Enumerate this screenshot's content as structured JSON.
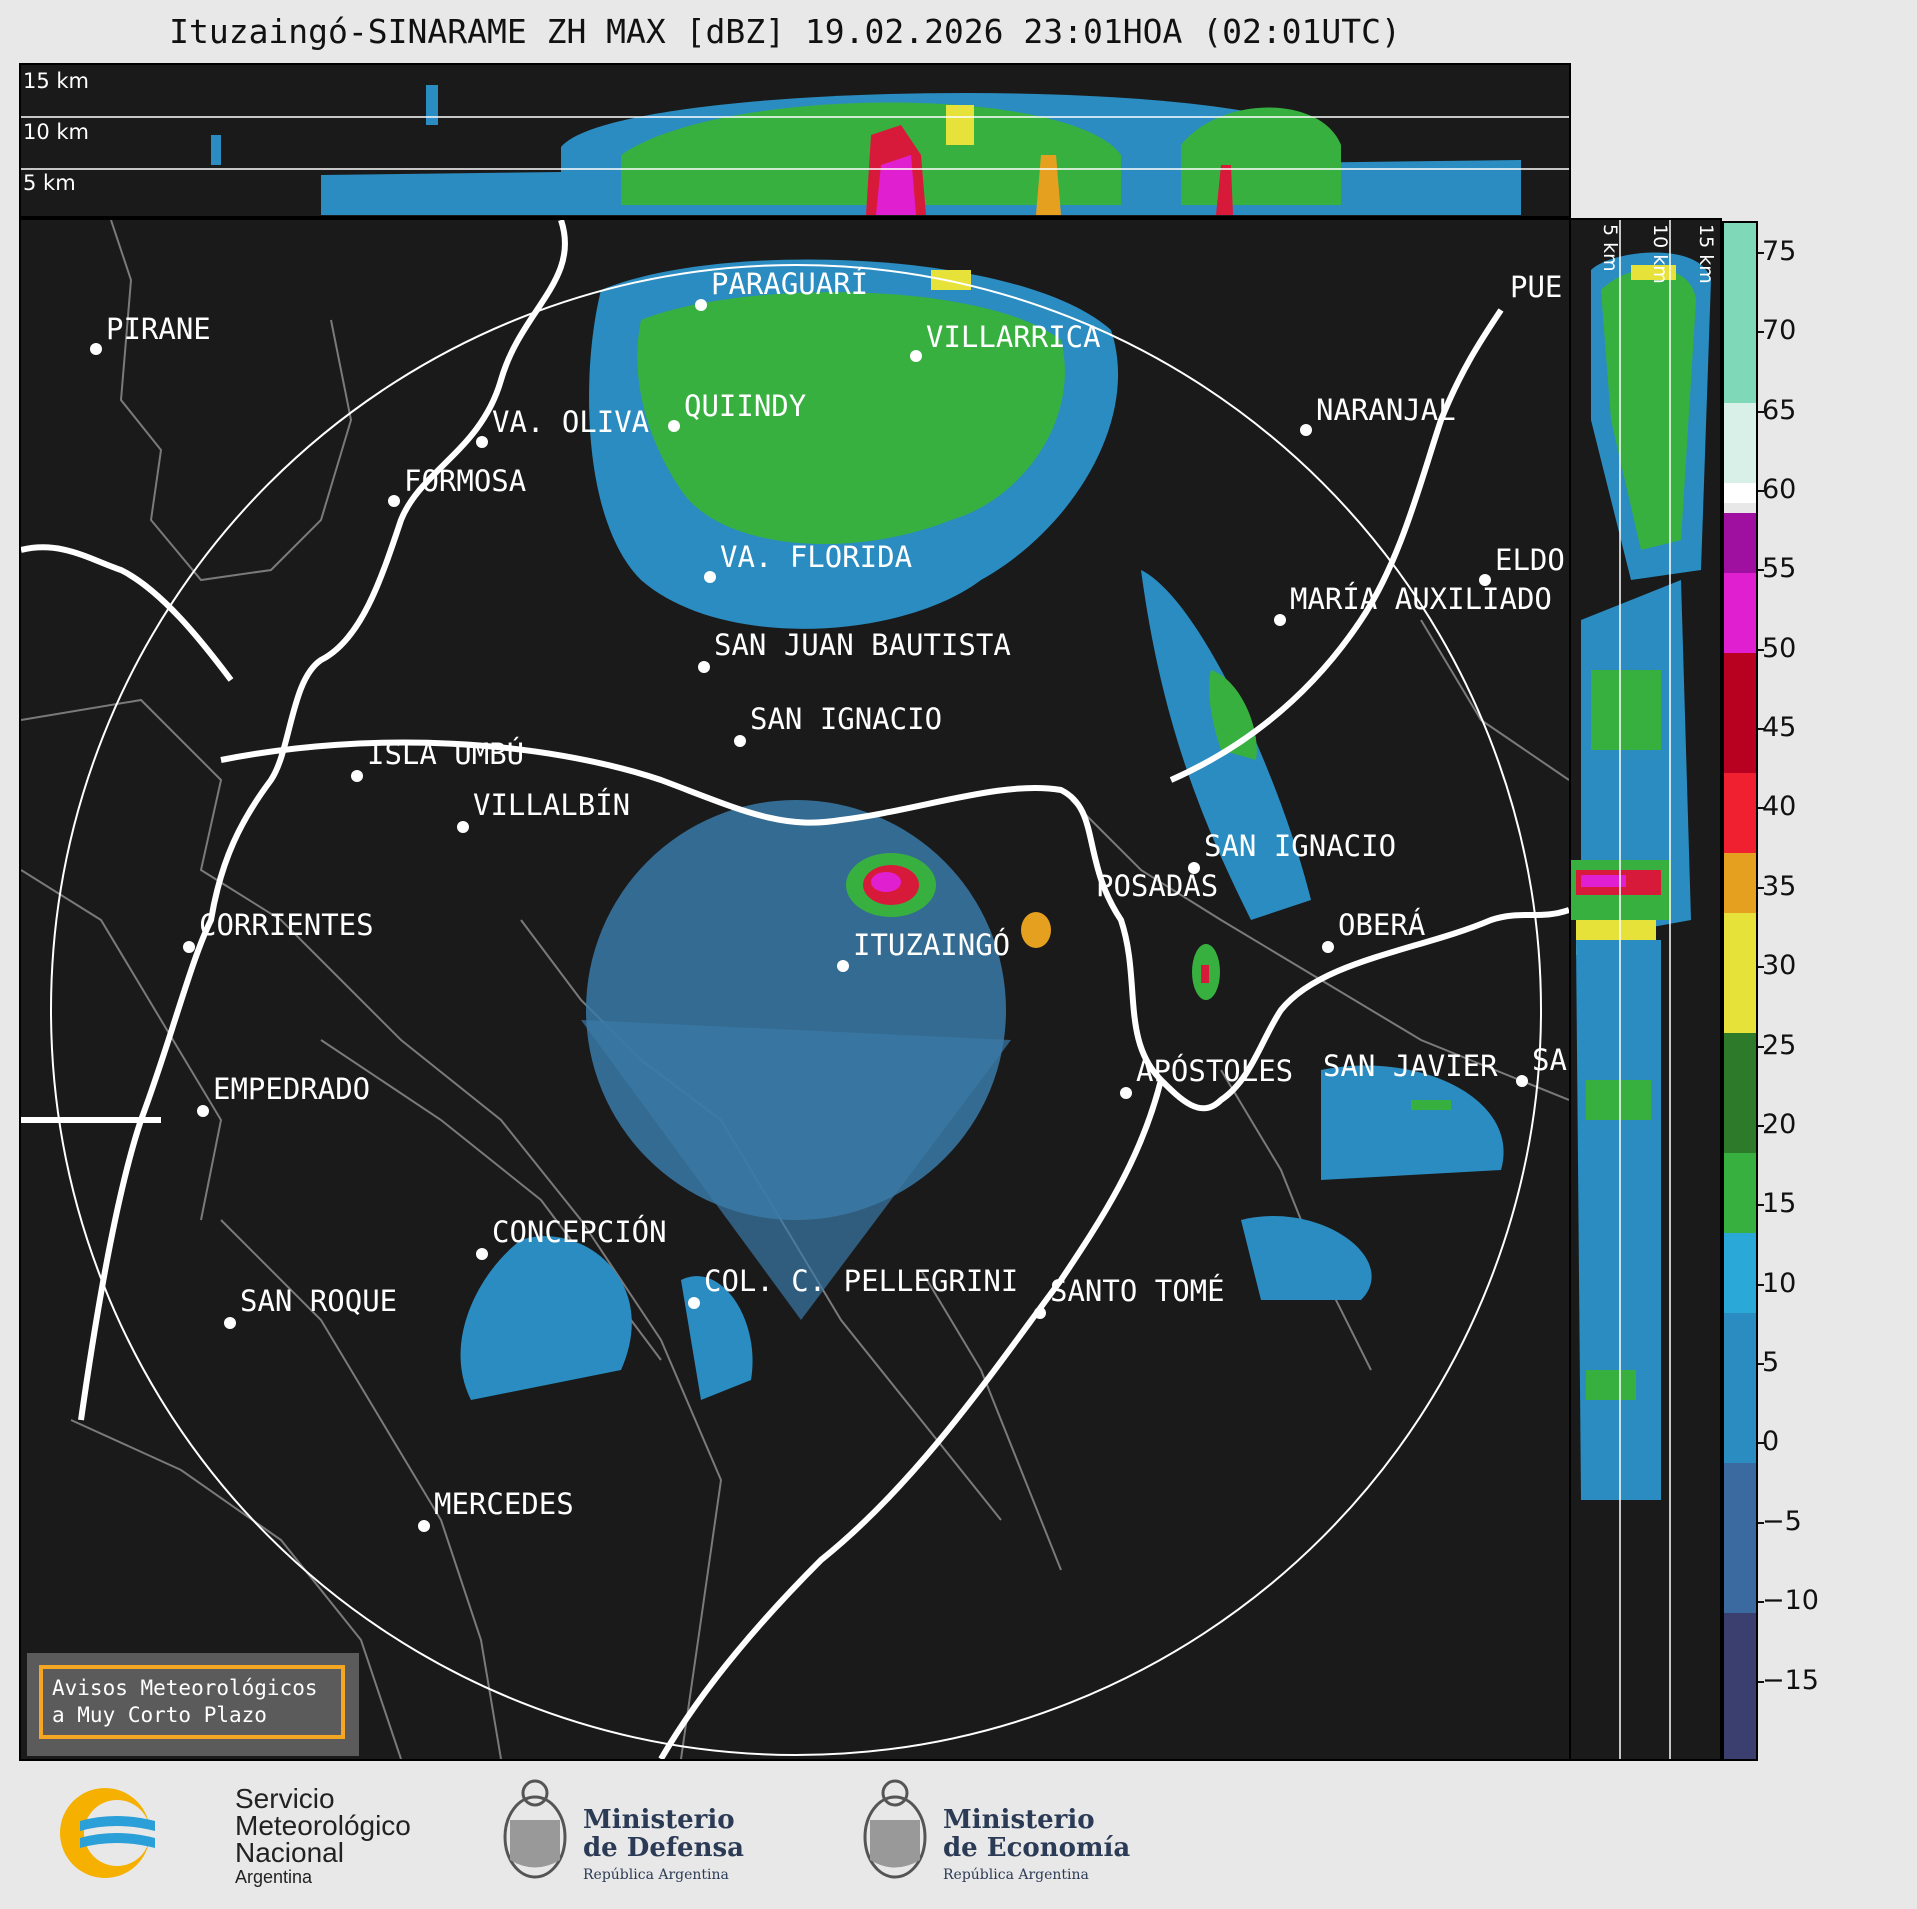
{
  "title": "Ituzaingó-SINARAME ZH MAX [dBZ] 19.02.2026 23:01HOA (02:01UTC)",
  "top_panel": {
    "height_labels": [
      "15 km",
      "10 km",
      "5 km"
    ]
  },
  "side_panel": {
    "height_labels": [
      "5 km",
      "10 km",
      "15 km"
    ]
  },
  "colorbar": {
    "ticks": [
      "75",
      "70",
      "65",
      "60",
      "55",
      "50",
      "45",
      "40",
      "35",
      "30",
      "25",
      "20",
      "15",
      "10",
      "5",
      "0",
      "−5",
      "−10",
      "−15"
    ],
    "tick_values": [
      75,
      70,
      65,
      60,
      55,
      50,
      45,
      40,
      35,
      30,
      25,
      20,
      15,
      10,
      5,
      0,
      -5,
      -10,
      -15
    ],
    "range": [
      -20,
      77
    ]
  },
  "cities": [
    {
      "name": "PARAGUARÍ"
    },
    {
      "name": "PIRANE"
    },
    {
      "name": "VILLARRICA"
    },
    {
      "name": "QUIINDY"
    },
    {
      "name": "VA. OLIVA"
    },
    {
      "name": "NARANJAL"
    },
    {
      "name": "FORMOSA"
    },
    {
      "name": "PUE"
    },
    {
      "name": "VA. FLORIDA"
    },
    {
      "name": "ELDO"
    },
    {
      "name": "MARÍA AUXILIADO"
    },
    {
      "name": "SAN JUAN BAUTISTA"
    },
    {
      "name": "SAN IGNACIO"
    },
    {
      "name": "ISLA UMBÚ"
    },
    {
      "name": "VILLALBÍN"
    },
    {
      "name": "SAN IGNACIO"
    },
    {
      "name": "POSADAS"
    },
    {
      "name": "CORRIENTES"
    },
    {
      "name": "ITUZAINGÓ"
    },
    {
      "name": "OBERÁ"
    },
    {
      "name": "EMPEDRADO"
    },
    {
      "name": "APÓSTOLES"
    },
    {
      "name": "SAN JAVIER"
    },
    {
      "name": "SA"
    },
    {
      "name": "CONCEPCIÓN"
    },
    {
      "name": "COL. C. PELLEGRINI"
    },
    {
      "name": "SANTO TOMÉ"
    },
    {
      "name": "SAN ROQUE"
    },
    {
      "name": "MERCEDES"
    }
  ],
  "avisos": {
    "line1": "Avisos Meteorológicos",
    "line2": "a Muy Corto Plazo"
  },
  "logos": {
    "smn": {
      "line1": "Servicio",
      "line2": "Meteorológico",
      "line3": "Nacional",
      "line4": "Argentina"
    },
    "defensa": {
      "line1": "Ministerio",
      "line2": "de Defensa",
      "sub": "República Argentina"
    },
    "economia": {
      "line1": "Ministerio",
      "line2": "de Economía",
      "sub": "República Argentina"
    }
  },
  "colors": {
    "panel_bg": "#1a1a1a",
    "accent": "#f5a623",
    "border_line": "#ffffff"
  }
}
